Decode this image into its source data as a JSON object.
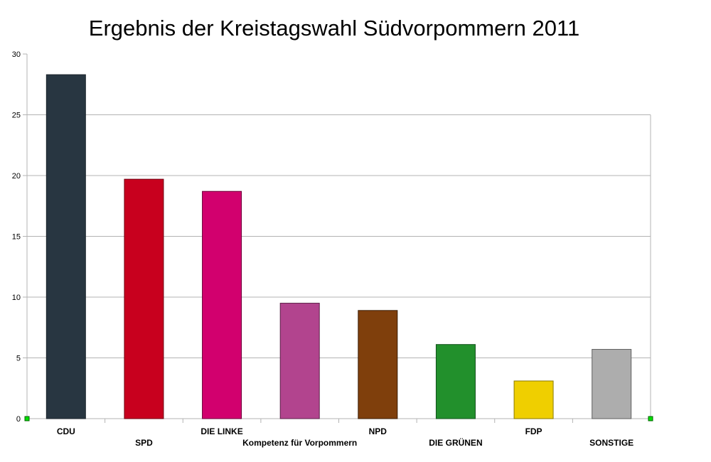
{
  "chart_data": {
    "type": "bar",
    "title": "Ergebnis der Kreistagswahl Südvorpommern 2011",
    "xlabel": "",
    "ylabel": "",
    "ylim": [
      0,
      30
    ],
    "yticks": [
      "0",
      "5",
      "10",
      "15",
      "20",
      "25",
      "30"
    ],
    "grid": true,
    "categories": [
      "CDU",
      "SPD",
      "DIE LINKE",
      "Kompetenz für Vorpommern",
      "NPD",
      "DIE GRÜNEN",
      "FDP",
      "SONSTIGE"
    ],
    "values": [
      28.3,
      19.7,
      18.7,
      9.5,
      8.9,
      6.1,
      3.1,
      5.7
    ],
    "colors": [
      "#283641",
      "#c8001e",
      "#d2006e",
      "#b2448e",
      "#7f3f0c",
      "#22902c",
      "#efcf00",
      "#adadad"
    ],
    "borders": [
      "#1a232a",
      "#6e0010",
      "#6a0038",
      "#5a2048",
      "#3a1c05",
      "#10501a",
      "#8a7a00",
      "#606060"
    ]
  }
}
